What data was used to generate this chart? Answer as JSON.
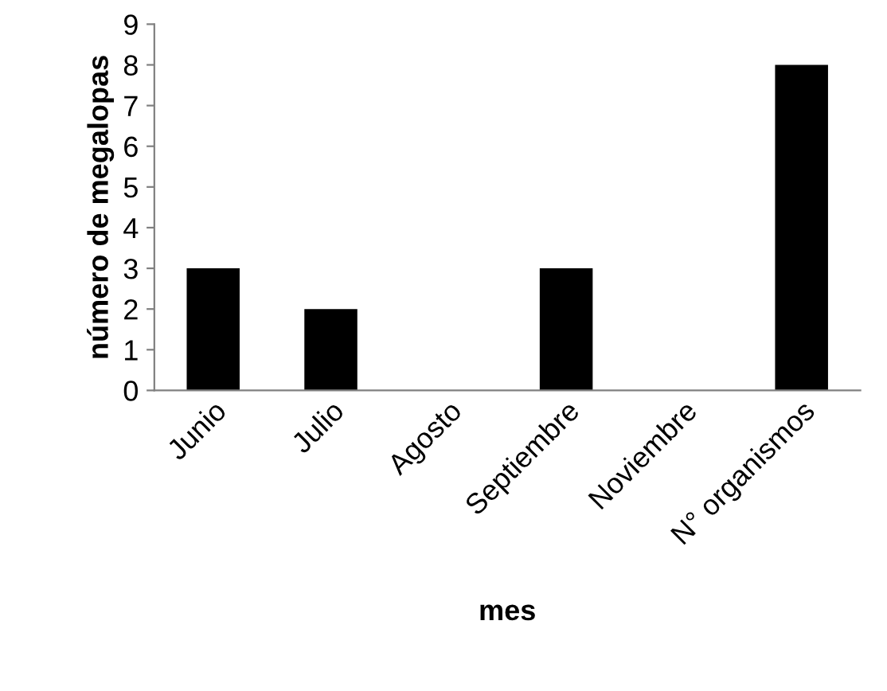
{
  "chart_data": {
    "type": "bar",
    "xlabel": "mes",
    "ylabel": "número de megalopas",
    "categories": [
      "Junio",
      "Julio",
      "Agosto",
      "Septiembre",
      "Noviembre",
      "N° organismos"
    ],
    "values": [
      3,
      2,
      0,
      3,
      0,
      8
    ],
    "color": "#000000",
    "ylim": [
      0,
      9
    ],
    "yticks": [
      0,
      1,
      2,
      3,
      4,
      5,
      6,
      7,
      8,
      9
    ],
    "grid": false,
    "legend": false
  }
}
